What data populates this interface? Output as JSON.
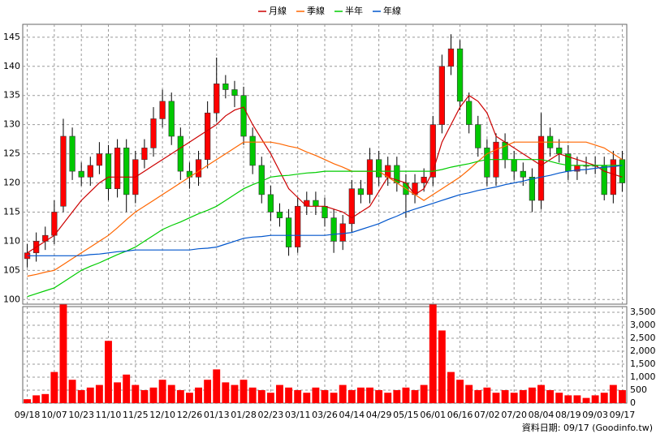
{
  "chart_data": [
    {
      "type": "candlestick",
      "categories": [
        "09/18",
        null,
        null,
        "10/07",
        null,
        null,
        "10/23",
        null,
        null,
        "11/10",
        null,
        null,
        "11/25",
        null,
        null,
        "12/10",
        null,
        null,
        "12/26",
        null,
        null,
        "01/13",
        null,
        null,
        "01/28",
        null,
        null,
        "02/23",
        null,
        null,
        "03/11",
        null,
        null,
        "03/26",
        null,
        null,
        "04/14",
        null,
        null,
        "04/29",
        null,
        null,
        "05/15",
        null,
        null,
        "06/01",
        null,
        null,
        "06/16",
        null,
        null,
        "07/02",
        null,
        null,
        "07/20",
        null,
        null,
        "08/04",
        null,
        null,
        "08/19",
        null,
        null,
        "09/03",
        null,
        null,
        "09/17"
      ],
      "open": [
        107,
        108,
        110,
        111,
        116,
        128,
        122,
        121,
        123,
        125,
        119,
        126,
        118,
        124,
        126,
        131,
        134,
        128,
        122,
        121,
        124,
        132,
        137,
        136,
        135,
        128,
        123,
        118,
        115,
        114,
        109,
        116,
        117,
        116,
        114,
        110,
        113,
        119,
        118,
        124,
        121,
        123,
        120,
        118,
        120,
        121,
        130,
        140,
        143,
        134,
        130,
        126,
        121,
        127,
        124,
        122,
        121,
        117,
        128,
        126,
        125,
        122,
        123,
        123,
        123,
        118,
        124
      ],
      "high": [
        109.5,
        111.5,
        112.5,
        117,
        131,
        129.5,
        123.5,
        124.5,
        127,
        126.5,
        127.5,
        127.5,
        125.5,
        127.5,
        133,
        136,
        135.5,
        129.5,
        123.5,
        125.5,
        134,
        141.5,
        138.5,
        137.5,
        136.5,
        129.5,
        124.5,
        119.5,
        116.5,
        115.5,
        117.5,
        118.5,
        118.5,
        117.5,
        115.5,
        114.5,
        120.5,
        120.5,
        126,
        125.5,
        124.5,
        124.5,
        121.5,
        121.5,
        122.5,
        131.5,
        142,
        145.5,
        144.5,
        135.5,
        131.5,
        127.5,
        128.5,
        128.5,
        125.5,
        123.5,
        122.5,
        132,
        129.5,
        127.5,
        126.5,
        124.5,
        124.5,
        124.5,
        124.5,
        125.5,
        125.5
      ],
      "low": [
        105.5,
        106.5,
        108.5,
        109.5,
        115,
        120.5,
        119.5,
        119.5,
        121.5,
        117,
        117.5,
        115,
        116.5,
        122.5,
        124.5,
        129.5,
        126.5,
        120.5,
        119,
        119.5,
        122.5,
        130.5,
        134.5,
        133,
        126.5,
        121.5,
        116.5,
        113.5,
        112.5,
        107.5,
        108,
        114.5,
        114.5,
        112.5,
        108,
        108.5,
        111.5,
        116.5,
        116.5,
        119.5,
        119.5,
        118.5,
        114,
        116.5,
        118.5,
        119.5,
        128.5,
        138.5,
        132.5,
        128.5,
        124.5,
        119.5,
        119.5,
        122.5,
        120.5,
        119.5,
        115,
        115.5,
        124.5,
        123.5,
        120.5,
        120.5,
        121.5,
        121.5,
        117,
        116.5,
        118.5
      ],
      "close": [
        108,
        110,
        111,
        115,
        128,
        122,
        121,
        123,
        125,
        119,
        126,
        118,
        124,
        126,
        131,
        134,
        128,
        122,
        121,
        124,
        132,
        137,
        136,
        135,
        128,
        123,
        118,
        115,
        114,
        109,
        116,
        117,
        116,
        114,
        110,
        113,
        119,
        118,
        124,
        121,
        123,
        120,
        118,
        120,
        121,
        130,
        140,
        143,
        134,
        130,
        126,
        121,
        127,
        124,
        122,
        121,
        117,
        128,
        126,
        125,
        122,
        123,
        123,
        123,
        118,
        124,
        120
      ],
      "up_color": "#ff0000",
      "down_color": "#00c800",
      "series": [
        {
          "name": "月線",
          "color": "#cc0000",
          "values": [
            108,
            109,
            110,
            111,
            113,
            115,
            117,
            118.5,
            120,
            121,
            121,
            121,
            121,
            122,
            123,
            124,
            125,
            126,
            127,
            128,
            129,
            130,
            131.5,
            132.5,
            133,
            130,
            127.5,
            125,
            122,
            119,
            117.5,
            116,
            116,
            116,
            115.5,
            115,
            114,
            115,
            116,
            118.5,
            121,
            120.5,
            120,
            118,
            119,
            122,
            127,
            130,
            133,
            135,
            134,
            132,
            128,
            127,
            126,
            125,
            124,
            123,
            124,
            125,
            124.5,
            124,
            123.5,
            123,
            122,
            121.5,
            121
          ]
        },
        {
          "name": "季線",
          "color": "#ff6600",
          "values": [
            104,
            104.3,
            104.7,
            105,
            106,
            107,
            108,
            109,
            110,
            111,
            112.3,
            113.7,
            115,
            116,
            117,
            118,
            119,
            120,
            121,
            122,
            123,
            124,
            125,
            126,
            127,
            127,
            127,
            127,
            126.7,
            126.3,
            126,
            125.3,
            124.7,
            124,
            123.3,
            122.7,
            122,
            122,
            122,
            122,
            121,
            120,
            119,
            118,
            117,
            118,
            119,
            120,
            121,
            122.3,
            123.7,
            125,
            125.7,
            126.3,
            127,
            127,
            127,
            127,
            127,
            127,
            127,
            127,
            127,
            126.5,
            126,
            125,
            124
          ]
        },
        {
          "name": "半年",
          "color": "#00cc00",
          "values": [
            100.5,
            101,
            101.5,
            102,
            103,
            104,
            105,
            105.7,
            106.3,
            107,
            107.7,
            108.3,
            109,
            110,
            111,
            112,
            112.7,
            113.3,
            114,
            114.7,
            115.3,
            116,
            117,
            118,
            119,
            119.7,
            120.3,
            121,
            121.2,
            121.3,
            121.5,
            121.7,
            121.8,
            122,
            122,
            122,
            122,
            122,
            122,
            122,
            122,
            122,
            122,
            122,
            122,
            122,
            122.3,
            122.7,
            123,
            123.3,
            123.7,
            124,
            124,
            124,
            124,
            124,
            124,
            124,
            123.7,
            123.3,
            123,
            123,
            123,
            123,
            123,
            123,
            123
          ]
        },
        {
          "name": "年線",
          "color": "#0055cc",
          "values": [
            107.5,
            107.5,
            107.5,
            107.5,
            107.5,
            107.5,
            107.5,
            107.7,
            107.8,
            108,
            108.2,
            108.3,
            108.5,
            108.5,
            108.5,
            108.5,
            108.5,
            108.5,
            108.5,
            108.7,
            108.8,
            109,
            109.5,
            110,
            110.5,
            110.7,
            110.8,
            111,
            111,
            111,
            111,
            111,
            111,
            111,
            111.2,
            111.3,
            111.5,
            112,
            112.5,
            113,
            113.7,
            114.3,
            115,
            115.5,
            116,
            116.5,
            117,
            117.5,
            118,
            118.3,
            118.7,
            119,
            119.3,
            119.7,
            120,
            120.3,
            120.7,
            121,
            121.3,
            121.7,
            122,
            122.2,
            122.3,
            122.5,
            122.7,
            122.8,
            123
          ]
        }
      ],
      "ylim": [
        99.2,
        147.2
      ],
      "yticks": [
        100,
        105,
        110,
        115,
        120,
        125,
        130,
        135,
        140,
        145
      ],
      "grid": true,
      "annotation": "資料日期: 09/17 (Goodinfo.tw)"
    },
    {
      "type": "bar",
      "color": "#ff0000",
      "values": [
        150,
        300,
        350,
        1200,
        3800,
        900,
        500,
        600,
        700,
        2400,
        800,
        1100,
        700,
        500,
        600,
        900,
        700,
        500,
        400,
        600,
        900,
        1300,
        800,
        700,
        900,
        600,
        500,
        400,
        700,
        600,
        500,
        400,
        600,
        500,
        400,
        700,
        500,
        600,
        600,
        500,
        400,
        500,
        600,
        500,
        700,
        3800,
        2800,
        1200,
        900,
        700,
        500,
        600,
        400,
        500,
        400,
        500,
        600,
        700,
        500,
        400,
        300,
        300,
        200,
        300,
        400,
        700,
        500
      ],
      "ylim": [
        0,
        3720
      ],
      "yticks": [
        0,
        500,
        {
          "value": 1000,
          "label": "1,000"
        },
        {
          "value": 1500,
          "label": "1,500"
        },
        {
          "value": 2000,
          "label": "2,000"
        },
        {
          "value": 2500,
          "label": "2,500"
        },
        {
          "value": 3000,
          "label": "3,000"
        },
        {
          "value": 3500,
          "label": "3,500"
        }
      ],
      "grid": true
    }
  ]
}
